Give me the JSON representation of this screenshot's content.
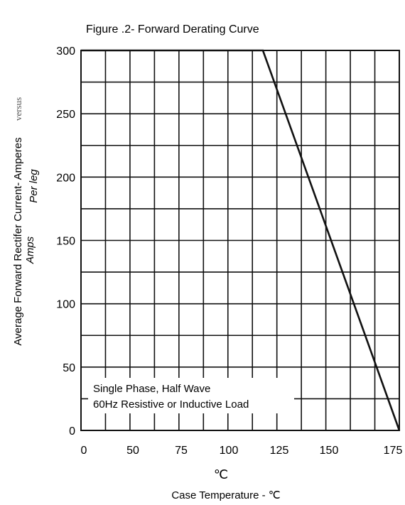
{
  "chart_data": {
    "type": "line",
    "title": "Figure .2- Forward Derating Curve",
    "ylabel": "Average Forward Rectifer Current- Amperes",
    "ylabel_versus": "versus",
    "ylabel_sub": "Per leg",
    "ylabel_sub2": "Amps",
    "xlabel": "Case Temperature -  ℃",
    "x_unit_mark": "℃",
    "xlim": [
      0,
      175
    ],
    "ylim": [
      0,
      300
    ],
    "x_tick_labels": [
      "0",
      "50",
      "75",
      "100",
      "125",
      "150",
      "175"
    ],
    "y_ticks": [
      0,
      50,
      100,
      150,
      200,
      250,
      300
    ],
    "grid": true,
    "series": [
      {
        "x": [
          0,
          100,
          175
        ],
        "y": [
          300,
          300,
          0
        ],
        "color": "#111111"
      }
    ],
    "annotation": {
      "line1": "Single Phase, Half Wave",
      "line2": "60Hz Resistive or Inductive Load"
    }
  }
}
